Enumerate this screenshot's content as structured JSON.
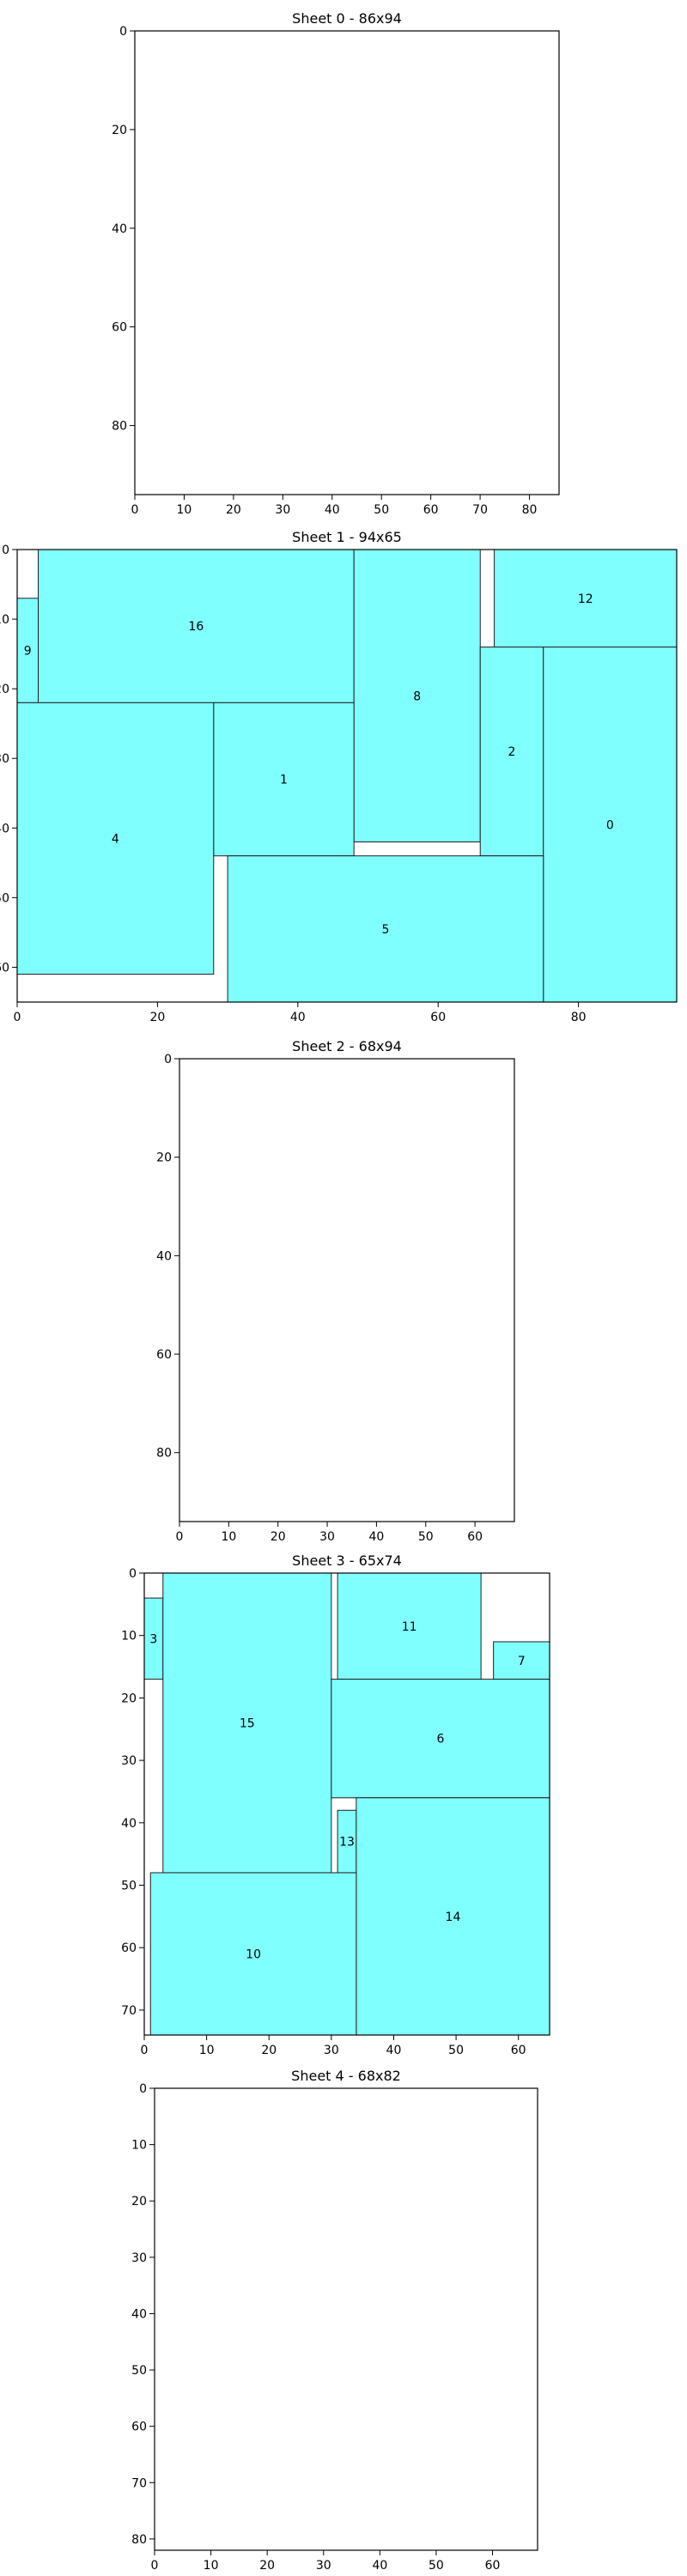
{
  "chart_data": [
    {
      "type": "rectangle-packing",
      "title": "Sheet 0 - 86x94",
      "sheet": {
        "width": 86,
        "height": 94
      },
      "xticks": [
        0,
        10,
        20,
        30,
        40,
        50,
        60,
        70,
        80
      ],
      "yticks": [
        0,
        20,
        40,
        60,
        80
      ],
      "pieces": []
    },
    {
      "type": "rectangle-packing",
      "title": "Sheet 1 - 94x65",
      "sheet": {
        "width": 94,
        "height": 65
      },
      "xticks": [
        0,
        20,
        40,
        60,
        80
      ],
      "yticks": [
        0,
        10,
        20,
        30,
        40,
        50,
        60
      ],
      "pieces": [
        {
          "label": "9",
          "x": 0,
          "y": 7,
          "w": 3,
          "h": 15
        },
        {
          "label": "16",
          "x": 3,
          "y": 0,
          "w": 45,
          "h": 22
        },
        {
          "label": "8",
          "x": 48,
          "y": 0,
          "w": 18,
          "h": 42
        },
        {
          "label": "12",
          "x": 68,
          "y": 0,
          "w": 26,
          "h": 14
        },
        {
          "label": "2",
          "x": 66,
          "y": 14,
          "w": 9,
          "h": 30
        },
        {
          "label": "0",
          "x": 75,
          "y": 14,
          "w": 19,
          "h": 51
        },
        {
          "label": "1",
          "x": 28,
          "y": 22,
          "w": 20,
          "h": 22
        },
        {
          "label": "4",
          "x": 0,
          "y": 22,
          "w": 28,
          "h": 39
        },
        {
          "label": "5",
          "x": 30,
          "y": 44,
          "w": 45,
          "h": 21
        }
      ]
    },
    {
      "type": "rectangle-packing",
      "title": "Sheet 2 - 68x94",
      "sheet": {
        "width": 68,
        "height": 94
      },
      "xticks": [
        0,
        10,
        20,
        30,
        40,
        50,
        60
      ],
      "yticks": [
        0,
        20,
        40,
        60,
        80
      ],
      "pieces": []
    },
    {
      "type": "rectangle-packing",
      "title": "Sheet 3 - 65x74",
      "sheet": {
        "width": 65,
        "height": 74
      },
      "xticks": [
        0,
        10,
        20,
        30,
        40,
        50,
        60
      ],
      "yticks": [
        0,
        10,
        20,
        30,
        40,
        50,
        60,
        70
      ],
      "pieces": [
        {
          "label": "3",
          "x": 0,
          "y": 4,
          "w": 3,
          "h": 13
        },
        {
          "label": "15",
          "x": 3,
          "y": 0,
          "w": 27,
          "h": 48
        },
        {
          "label": "11",
          "x": 31,
          "y": 0,
          "w": 23,
          "h": 17
        },
        {
          "label": "7",
          "x": 56,
          "y": 11,
          "w": 9,
          "h": 6
        },
        {
          "label": "6",
          "x": 30,
          "y": 17,
          "w": 35,
          "h": 19
        },
        {
          "label": "13",
          "x": 31,
          "y": 38,
          "w": 3,
          "h": 10
        },
        {
          "label": "14",
          "x": 34,
          "y": 36,
          "w": 31,
          "h": 38
        },
        {
          "label": "10",
          "x": 1,
          "y": 48,
          "w": 33,
          "h": 26
        }
      ]
    },
    {
      "type": "rectangle-packing",
      "title": "Sheet 4 - 68x82",
      "sheet": {
        "width": 68,
        "height": 82
      },
      "xticks": [
        0,
        10,
        20,
        30,
        40,
        50,
        60
      ],
      "yticks": [
        0,
        10,
        20,
        30,
        40,
        50,
        60,
        70,
        80
      ],
      "pieces": []
    }
  ],
  "style": {
    "piece_fill": "#80ffff",
    "piece_stroke": "#1f1f1f",
    "axis_color": "#000000"
  }
}
